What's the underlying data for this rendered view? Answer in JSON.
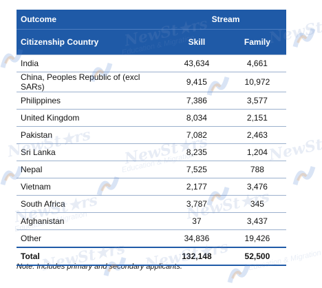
{
  "header": {
    "outcome_label": "Outcome",
    "stream_label": "Stream",
    "country_label": "Citizenship Country",
    "skill_label": "Skill",
    "family_label": "Family"
  },
  "rows": [
    {
      "country": "India",
      "skill": "43,634",
      "family": "4,661"
    },
    {
      "country": "China, Peoples Republic of (excl SARs)",
      "skill": "9,415",
      "family": "10,972"
    },
    {
      "country": "Philippines",
      "skill": "7,386",
      "family": "3,577"
    },
    {
      "country": "United Kingdom",
      "skill": "8,034",
      "family": "2,151"
    },
    {
      "country": "Pakistan",
      "skill": "7,082",
      "family": "2,463"
    },
    {
      "country": "Sri Lanka",
      "skill": "8,235",
      "family": "1,204"
    },
    {
      "country": "Nepal",
      "skill": "7,525",
      "family": "788"
    },
    {
      "country": "Vietnam",
      "skill": "2,177",
      "family": "3,476"
    },
    {
      "country": "South Africa",
      "skill": "3,787",
      "family": "345"
    },
    {
      "country": "Afghanistan",
      "skill": "37",
      "family": "3,437"
    },
    {
      "country": "Other",
      "skill": "34,836",
      "family": "19,426"
    }
  ],
  "total": {
    "label": "Total",
    "skill": "132,148",
    "family": "52,500"
  },
  "note": "Note: Includes primary and secondary applicants.",
  "watermark": {
    "brand": "NewSt★rs",
    "tagline": "Education & Migration",
    "logo_icon": "newstars-logo-icon"
  },
  "colors": {
    "header_bg": "#1f5aa7",
    "row_border": "#9bb0cd"
  }
}
